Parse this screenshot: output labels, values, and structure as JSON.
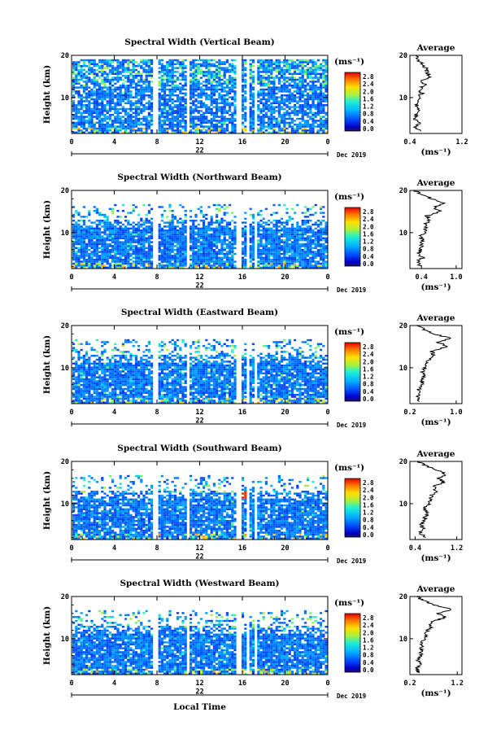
{
  "chart_data": [
    {
      "type": "heatmap",
      "title": "Spectral Width (Vertical Beam)",
      "ylabel": "Height (km)",
      "y_ticks": [
        10,
        20
      ],
      "ylim": [
        1.5,
        20
      ],
      "x_ticks": [
        "0",
        "4",
        "8",
        "12",
        "16",
        "20",
        "0"
      ],
      "xlim": [
        0,
        24
      ],
      "date_tick": "22",
      "date_label": "Dec 2019",
      "colorbar_unit": "(ms⁻¹)",
      "colorbar_ticks": [
        "2.8",
        "2.4",
        "2.0",
        "1.6",
        "1.2",
        "0.8",
        "0.4",
        "0.0"
      ],
      "gaps_hours": [
        [
          7.6,
          7.9
        ],
        [
          10.8,
          11.0
        ],
        [
          15.3,
          15.7
        ],
        [
          16.4,
          16.5
        ],
        [
          17.1,
          17.3
        ]
      ],
      "average": {
        "title": "Average",
        "xlabel": "(ms⁻¹)",
        "x_ticks": [
          "0.4",
          "1.2"
        ],
        "xlim": [
          0.4,
          1.2
        ],
        "y_ticks": [
          10,
          20
        ],
        "height_km": [
          2,
          3,
          4,
          5,
          6,
          7,
          8,
          9,
          10,
          11,
          12,
          13,
          14,
          15,
          16,
          17,
          18,
          19,
          20
        ],
        "values": [
          0.56,
          0.48,
          0.55,
          0.47,
          0.5,
          0.52,
          0.5,
          0.54,
          0.53,
          0.58,
          0.55,
          0.62,
          0.6,
          0.72,
          0.66,
          0.64,
          0.58,
          0.52,
          0.5
        ]
      }
    },
    {
      "type": "heatmap",
      "title": "Spectral Width (Northward Beam)",
      "ylabel": "Height (km)",
      "y_ticks": [
        10,
        20
      ],
      "ylim": [
        1.5,
        20
      ],
      "x_ticks": [
        "0",
        "4",
        "8",
        "12",
        "16",
        "20",
        "0"
      ],
      "xlim": [
        0,
        24
      ],
      "date_tick": "22",
      "date_label": "Dec 2019",
      "colorbar_unit": "(ms⁻¹)",
      "colorbar_ticks": [
        "2.8",
        "2.4",
        "2.0",
        "1.6",
        "1.2",
        "0.8",
        "0.4",
        "0.0"
      ],
      "gaps_hours": [
        [
          5.7,
          5.9
        ],
        [
          7.6,
          7.9
        ],
        [
          10.8,
          11.0
        ],
        [
          15.3,
          15.7
        ],
        [
          16.4,
          16.5
        ],
        [
          17.1,
          17.3
        ]
      ],
      "average": {
        "title": "Average",
        "xlabel": "(ms⁻¹)",
        "x_ticks": [
          "0.4",
          "1.0"
        ],
        "xlim": [
          0.2,
          1.1
        ],
        "y_ticks": [
          10,
          20
        ],
        "height_km": [
          2,
          3,
          4,
          5,
          6,
          7,
          8,
          9,
          10,
          11,
          12,
          13,
          14,
          15,
          16,
          17,
          18,
          19,
          20
        ],
        "values": [
          0.4,
          0.32,
          0.42,
          0.35,
          0.38,
          0.4,
          0.42,
          0.38,
          0.44,
          0.48,
          0.45,
          0.55,
          0.5,
          0.72,
          0.62,
          0.78,
          0.58,
          0.4,
          0.3
        ]
      }
    },
    {
      "type": "heatmap",
      "title": "Spectral Width (Eastward Beam)",
      "ylabel": "Height (km)",
      "y_ticks": [
        10,
        20
      ],
      "ylim": [
        1.5,
        20
      ],
      "x_ticks": [
        "0",
        "4",
        "8",
        "12",
        "16",
        "20",
        "0"
      ],
      "xlim": [
        0,
        24
      ],
      "date_tick": "22",
      "date_label": "Dec 2019",
      "colorbar_unit": "(ms⁻¹)",
      "colorbar_ticks": [
        "2.8",
        "2.4",
        "2.0",
        "1.6",
        "1.2",
        "0.8",
        "0.4",
        "0.0"
      ],
      "gaps_hours": [
        [
          5.7,
          5.9
        ],
        [
          7.6,
          7.9
        ],
        [
          10.8,
          11.0
        ],
        [
          15.3,
          15.7
        ],
        [
          16.4,
          16.5
        ],
        [
          17.1,
          17.3
        ]
      ],
      "average": {
        "title": "Average",
        "xlabel": "(ms⁻¹)",
        "x_ticks": [
          "0.2",
          "1.0"
        ],
        "xlim": [
          0.2,
          1.1
        ],
        "y_ticks": [
          10,
          20
        ],
        "height_km": [
          2,
          3,
          4,
          5,
          6,
          7,
          8,
          9,
          10,
          11,
          12,
          13,
          14,
          15,
          16,
          17,
          18,
          19,
          20
        ],
        "values": [
          0.36,
          0.32,
          0.38,
          0.36,
          0.4,
          0.42,
          0.44,
          0.42,
          0.46,
          0.5,
          0.52,
          0.6,
          0.58,
          0.84,
          0.7,
          0.9,
          0.62,
          0.45,
          0.32
        ]
      }
    },
    {
      "type": "heatmap",
      "title": "Spectral Width (Southward Beam)",
      "ylabel": "Height (km)",
      "y_ticks": [
        10,
        20
      ],
      "ylim": [
        1.5,
        20
      ],
      "x_ticks": [
        "0",
        "4",
        "8",
        "12",
        "16",
        "20",
        "0"
      ],
      "xlim": [
        0,
        24
      ],
      "date_tick": "22",
      "date_label": "Dec 2019",
      "colorbar_unit": "(ms⁻¹)",
      "colorbar_ticks": [
        "2.8",
        "2.4",
        "2.0",
        "1.6",
        "1.2",
        "0.8",
        "0.4",
        "0.0"
      ],
      "gaps_hours": [
        [
          5.7,
          5.9
        ],
        [
          7.6,
          7.9
        ],
        [
          10.8,
          11.0
        ],
        [
          15.3,
          15.7
        ],
        [
          16.4,
          16.5
        ],
        [
          17.1,
          17.3
        ]
      ],
      "average": {
        "title": "Average",
        "xlabel": "(ms⁻¹)",
        "x_ticks": [
          "0.4",
          "1.2"
        ],
        "xlim": [
          0.3,
          1.3
        ],
        "y_ticks": [
          10,
          20
        ],
        "height_km": [
          2,
          3,
          4,
          5,
          6,
          7,
          8,
          9,
          10,
          11,
          12,
          13,
          14,
          15,
          16,
          17,
          18,
          19,
          20
        ],
        "values": [
          0.6,
          0.5,
          0.55,
          0.52,
          0.58,
          0.6,
          0.62,
          0.6,
          0.66,
          0.7,
          0.72,
          0.8,
          0.75,
          0.95,
          0.85,
          0.98,
          0.8,
          0.6,
          0.45
        ]
      }
    },
    {
      "type": "heatmap",
      "title": "Spectral Width (Westward Beam)",
      "ylabel": "Height (km)",
      "y_ticks": [
        10,
        20
      ],
      "ylim": [
        1.5,
        20
      ],
      "x_ticks": [
        "0",
        "4",
        "8",
        "12",
        "16",
        "20",
        "0"
      ],
      "xlim": [
        0,
        24
      ],
      "date_tick": "22",
      "date_label": "Dec 2019",
      "xlabel": "Local Time",
      "colorbar_unit": "(ms⁻¹)",
      "colorbar_ticks": [
        "2.8",
        "2.4",
        "2.0",
        "1.6",
        "1.2",
        "0.8",
        "0.4",
        "0.0"
      ],
      "gaps_hours": [
        [
          5.7,
          5.9
        ],
        [
          7.6,
          7.9
        ],
        [
          10.8,
          11.0
        ],
        [
          15.3,
          15.7
        ],
        [
          16.4,
          16.5
        ],
        [
          17.1,
          17.3
        ]
      ],
      "average": {
        "title": "Average",
        "xlabel": "(ms⁻¹)",
        "x_ticks": [
          "0.2",
          "1.2"
        ],
        "xlim": [
          0.2,
          1.3
        ],
        "y_ticks": [
          10,
          20
        ],
        "height_km": [
          2,
          3,
          4,
          5,
          6,
          7,
          8,
          9,
          10,
          11,
          12,
          13,
          14,
          15,
          16,
          17,
          18,
          19,
          20
        ],
        "values": [
          0.4,
          0.34,
          0.42,
          0.38,
          0.42,
          0.44,
          0.46,
          0.44,
          0.5,
          0.55,
          0.58,
          0.66,
          0.62,
          0.95,
          0.8,
          1.1,
          0.7,
          0.5,
          0.34
        ]
      }
    }
  ]
}
